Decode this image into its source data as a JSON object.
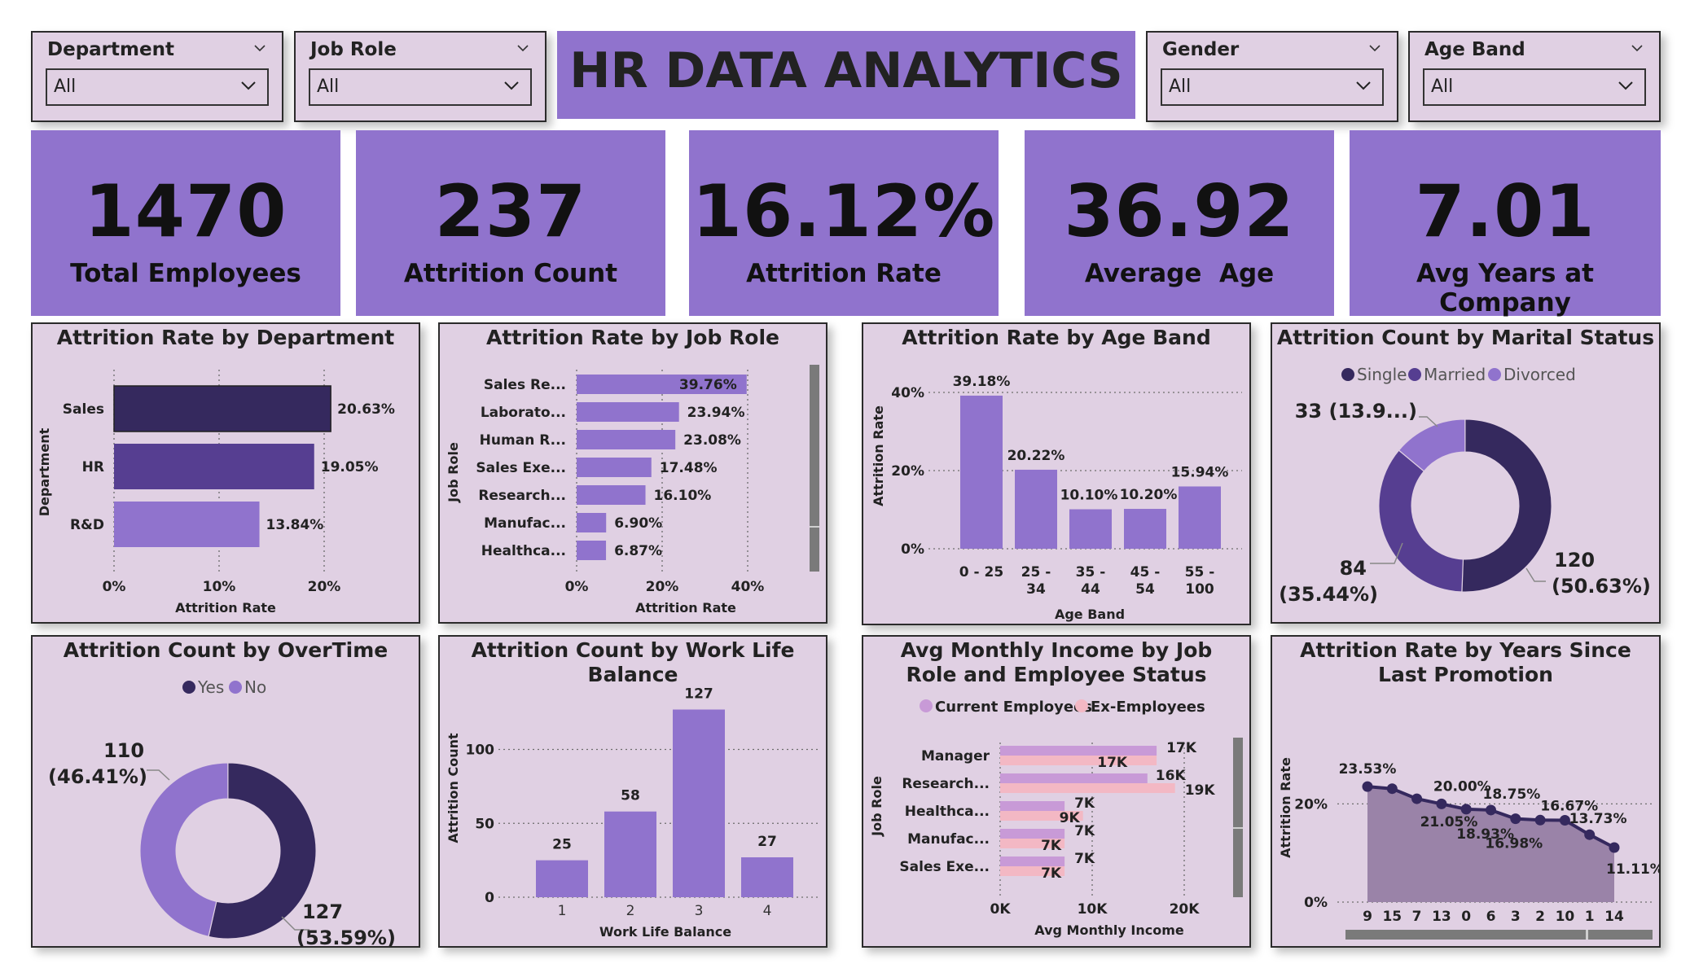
{
  "title": "HR DATA ANALYTICS",
  "slicers": [
    {
      "label": "Department",
      "value": "All"
    },
    {
      "label": "Job Role",
      "value": "All"
    },
    {
      "label": "Gender",
      "value": "All"
    },
    {
      "label": "Age Band",
      "value": "All"
    }
  ],
  "kpis": [
    {
      "value": "1470",
      "label": "Total Employees"
    },
    {
      "value": "237",
      "label": "Attrition Count"
    },
    {
      "value": "16.12%",
      "label": "Attrition Rate"
    },
    {
      "value": "36.92",
      "label": "Average  Age"
    },
    {
      "value": "7.01",
      "label": "Avg Years at Company"
    }
  ],
  "colors": {
    "accent": "#9073cd",
    "panel": "#e0d0e3",
    "dark": "#35295e",
    "mid": "#563e91",
    "light": "#9073cd",
    "pink": "#f3b8c4",
    "lilac": "#c89ad7"
  },
  "chart_data": [
    {
      "type": "bar",
      "title": "Attrition Rate by Department",
      "xlabel": "Attrition Rate",
      "ylabel": "Department",
      "categories": [
        "Sales",
        "HR",
        "R&D"
      ],
      "values": [
        20.63,
        19.05,
        13.84
      ],
      "labels": [
        "20.63%",
        "19.05%",
        "13.84%"
      ],
      "xticks": [
        "0%",
        "10%",
        "20%"
      ],
      "xlim": [
        0,
        21
      ]
    },
    {
      "type": "bar",
      "title": "Attrition Rate by Job Role",
      "xlabel": "Attrition Rate",
      "ylabel": "Job Role",
      "categories": [
        "Sales Re...",
        "Laborato...",
        "Human R...",
        "Sales Exe...",
        "Research...",
        "Manufac...",
        "Healthca..."
      ],
      "values": [
        39.76,
        23.94,
        23.08,
        17.48,
        16.1,
        6.9,
        6.87
      ],
      "labels": [
        "39.76%",
        "23.94%",
        "23.08%",
        "17.48%",
        "16.10%",
        "6.90%",
        "6.87%"
      ],
      "xticks": [
        "0%",
        "20%",
        "40%"
      ],
      "xlim": [
        0,
        40
      ]
    },
    {
      "type": "bar",
      "title": "Attrition Rate by Age Band",
      "xlabel": "Age Band",
      "ylabel": "Attrition Rate",
      "categories": [
        [
          "0 - 25"
        ],
        [
          "25 -",
          "34"
        ],
        [
          "35 -",
          "44"
        ],
        [
          "45 -",
          "54"
        ],
        [
          "55 -",
          "100"
        ]
      ],
      "values": [
        39.18,
        20.22,
        10.1,
        10.2,
        15.94
      ],
      "labels": [
        "39.18%",
        "20.22%",
        "10.10%",
        "10.20%",
        "15.94%"
      ],
      "yticks": [
        "0%",
        "20%",
        "40%"
      ],
      "ylim": [
        0,
        40
      ]
    },
    {
      "type": "pie",
      "title": "Attrition Count by Marital Status",
      "legend": [
        "Single",
        "Married",
        "Divorced"
      ],
      "values": [
        120,
        84,
        33
      ],
      "labels": [
        [
          "120",
          "(50.63%)"
        ],
        [
          "84",
          "(35.44%)"
        ],
        [
          "33 (13.9...)"
        ]
      ]
    },
    {
      "type": "pie",
      "title": "Attrition Count by OverTime",
      "legend": [
        "Yes",
        "No"
      ],
      "values": [
        127,
        110
      ],
      "labels": [
        [
          "127",
          "(53.59%)"
        ],
        [
          "110",
          "(46.41%)"
        ]
      ]
    },
    {
      "type": "bar",
      "title": "Attrition Count by Work Life Balance",
      "xlabel": "Work Life Balance",
      "ylabel": "Attrition Count",
      "categories": [
        "1",
        "2",
        "3",
        "4"
      ],
      "values": [
        25,
        58,
        127,
        27
      ],
      "labels": [
        "25",
        "58",
        "127",
        "27"
      ],
      "yticks": [
        "0",
        "50",
        "100"
      ],
      "ylim": [
        0,
        127
      ]
    },
    {
      "type": "bar",
      "title": "Avg Monthly Income by Job Role and Employee Status",
      "xlabel": "Avg Monthly Income",
      "ylabel": "Job Role",
      "categories": [
        "Manager",
        "Research...",
        "Healthca...",
        "Manufac...",
        "Sales Exe..."
      ],
      "series": [
        {
          "name": "Current Employees",
          "values": [
            17,
            16,
            7,
            7,
            7
          ],
          "labels": [
            "17K",
            "16K",
            "7K",
            "7K",
            "7K"
          ]
        },
        {
          "name": "Ex-Employees",
          "values": [
            17,
            19,
            9,
            7,
            7
          ],
          "labels": [
            "17K",
            "19K",
            "9K",
            "7K",
            "7K"
          ]
        }
      ],
      "xticks": [
        "0K",
        "10K",
        "20K"
      ],
      "xlim": [
        0,
        20
      ]
    },
    {
      "type": "area",
      "title": "Attrition Rate by Years Since Last Promotion",
      "xlabel": "Years Since Last Promotion",
      "ylabel": "Attrition Rate",
      "categories": [
        "9",
        "15",
        "7",
        "13",
        "0",
        "6",
        "3",
        "2",
        "10",
        "1",
        "14"
      ],
      "values": [
        23.53,
        23.1,
        21.05,
        20.0,
        18.93,
        18.75,
        16.98,
        16.7,
        16.67,
        13.73,
        11.11
      ],
      "labels": [
        "23.53%",
        "",
        "21.05%",
        "20.00%",
        "18.93%",
        "18.75%",
        "16.98%",
        "",
        "16.67%",
        "13.73%",
        "11.11%"
      ],
      "yticks": [
        "0%",
        "20%"
      ],
      "ylim": [
        0,
        24
      ]
    }
  ]
}
